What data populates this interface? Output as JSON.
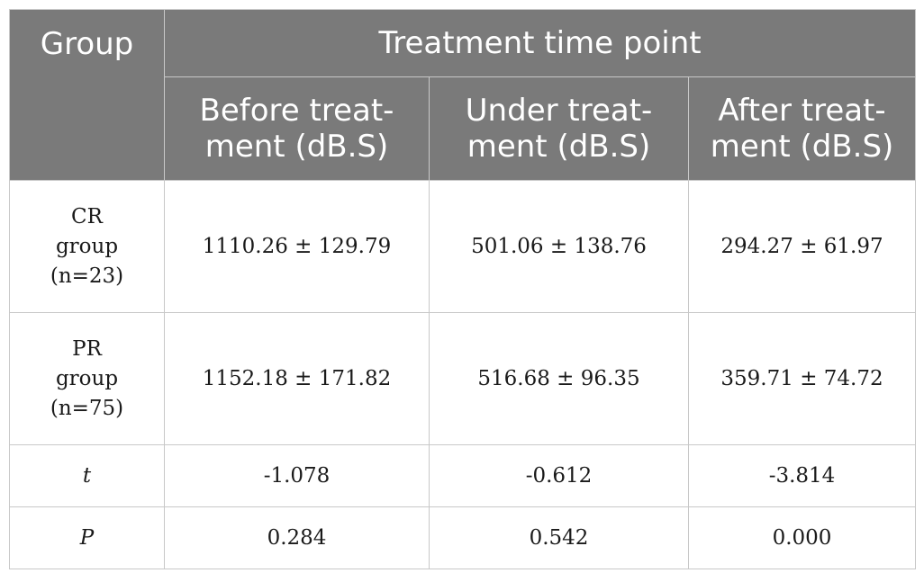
{
  "header": {
    "group": "Group",
    "span_title": "Treatment time point",
    "columns": {
      "before_line1": "Before treat-",
      "before_line2": "ment (dB.S)",
      "under_line1": "Under treat-",
      "under_line2": "ment (dB.S)",
      "after_line1": "After treat-",
      "after_line2": "ment (dB.S)"
    }
  },
  "rows": [
    {
      "label_line1": "CR",
      "label_line2": "group",
      "label_line3": "(n=23)",
      "before": "1110.26 ± 129.79",
      "under": "501.06 ± 138.76",
      "after": "294.27 ± 61.97"
    },
    {
      "label_line1": "PR",
      "label_line2": "group",
      "label_line3": "(n=75)",
      "before": "1152.18 ± 171.82",
      "under": "516.68 ± 96.35",
      "after": "359.71 ± 74.72"
    }
  ],
  "stats": [
    {
      "label": "t",
      "before": "-1.078",
      "under": "-0.612",
      "after": "-3.814"
    },
    {
      "label": "P",
      "before": "0.284",
      "under": "0.542",
      "after": "0.000"
    }
  ]
}
